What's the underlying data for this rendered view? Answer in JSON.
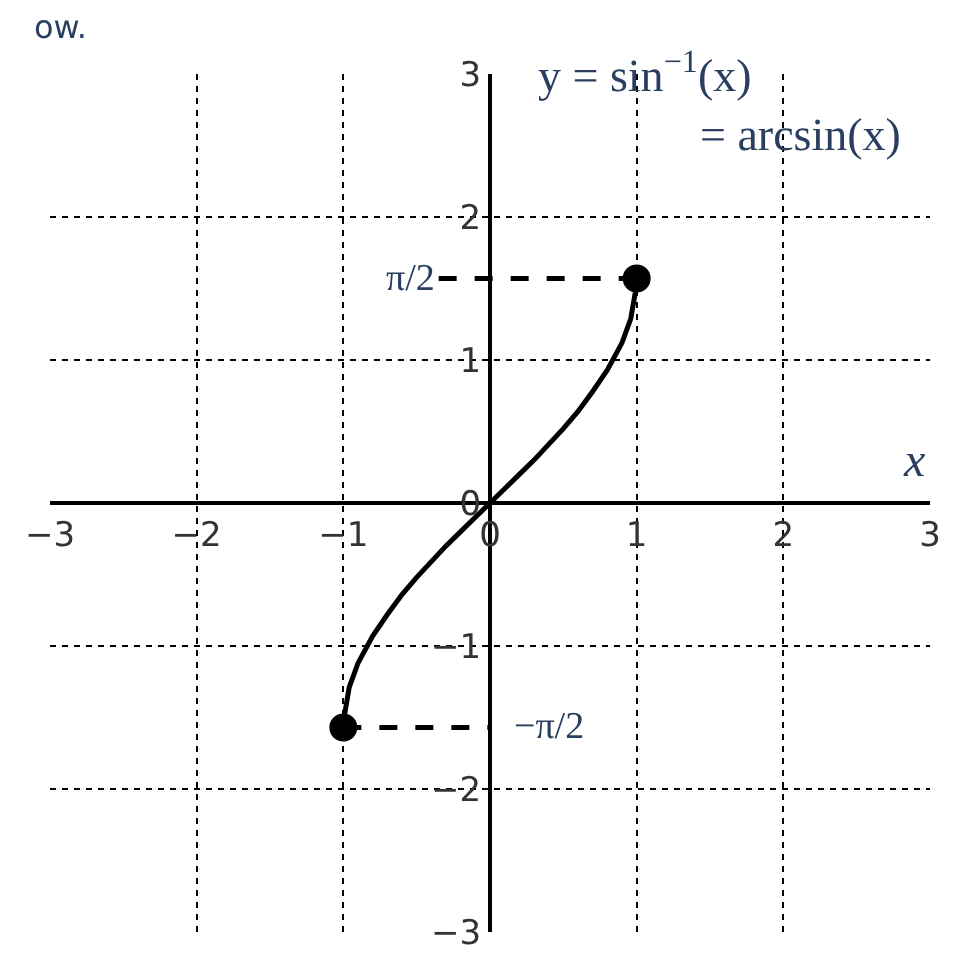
{
  "chart_data": {
    "type": "line",
    "xlabel": "x",
    "ylabel": "y = sin$^{−1}$(x)",
    "x": [
      -1,
      -0.99,
      -0.96,
      -0.9,
      -0.8,
      -0.7,
      -0.6,
      -0.5,
      -0.4,
      -0.3,
      -0.2,
      -0.1,
      0,
      0.1,
      0.2,
      0.3,
      0.4,
      0.5,
      0.6,
      0.7,
      0.8,
      0.9,
      0.96,
      0.99,
      1
    ],
    "series": [
      {
        "color": "#000000",
        "values": [
          -1.57,
          -1.47,
          -1.29,
          -1.12,
          -0.93,
          -0.78,
          -0.64,
          -0.52,
          -0.41,
          -0.3,
          -0.2,
          -0.1,
          0,
          0.1,
          0.2,
          0.3,
          0.41,
          0.52,
          0.64,
          0.78,
          0.93,
          1.12,
          1.29,
          1.47,
          1.57
        ]
      },
      {
        "type": "scatter",
        "color": "#000000",
        "marker": "circle",
        "x": [
          -1,
          1
        ],
        "values": [
          -1.57,
          1.57
        ]
      },
      {
        "color": "#000000",
        "line_style": "dashed",
        "x": [
          -1,
          0
        ],
        "values": [
          -1.57,
          -1.57
        ]
      },
      {
        "color": "#000000",
        "line_style": "dashed",
        "x": [
          -0.35,
          1
        ],
        "values": [
          1.57,
          1.57
        ]
      }
    ],
    "xlim": [
      -3,
      3
    ],
    "ylim": [
      -3,
      3
    ],
    "xticks": [
      -3,
      -2,
      -1,
      0,
      1,
      2,
      3
    ],
    "yticks": [
      -3,
      -2,
      -1,
      0,
      1,
      2,
      3
    ],
    "grid": true,
    "annotations": [
      "ow.",
      "= arcsin(x)",
      {
        "text": "π/2",
        "x": -0.35,
        "y": 1.57
      },
      {
        "text": "−π/2",
        "x": 0,
        "y": -1.57
      }
    ]
  }
}
